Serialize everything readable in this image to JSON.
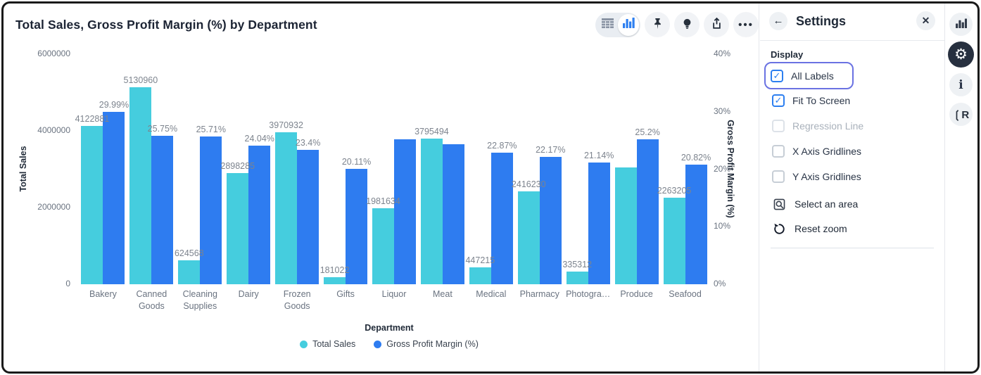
{
  "chart_header": {
    "title": "Total Sales, Gross Profit Margin (%) by Department"
  },
  "toolbar": {
    "icons": [
      "table-view-icon",
      "chart-view-icon",
      "pin-icon",
      "insights-bulb-icon",
      "export-icon",
      "more-options-icon"
    ],
    "active_view": "chart"
  },
  "chart_data": {
    "type": "bar",
    "title": "Total Sales, Gross Profit Margin (%) by Department",
    "categories": [
      "Bakery",
      "Canned Goods",
      "Cleaning Supplies",
      "Dairy",
      "Frozen Goods",
      "Gifts",
      "Liquor",
      "Meat",
      "Medical",
      "Pharmacy",
      "Photogra…",
      "Produce",
      "Seafood"
    ],
    "series": [
      {
        "name": "Total Sales",
        "axis": "left",
        "color": "#45cdde",
        "values": [
          4122881,
          5130960,
          624568,
          2898285,
          3970932,
          181022,
          1981634,
          3795494,
          447215,
          2416230,
          335312,
          3040000,
          2263205
        ],
        "labels": [
          "4122881",
          "5130960",
          "624568",
          "2898285",
          "3970932",
          "181022",
          "1981634",
          "3795494",
          "447215",
          "2416230",
          "335312",
          null,
          "2263205"
        ]
      },
      {
        "name": "Gross Profit Margin (%)",
        "axis": "right",
        "color": "#2e7cf0",
        "values": [
          29.99,
          25.75,
          25.71,
          24.04,
          23.4,
          20.11,
          25.2,
          24.4,
          22.87,
          22.17,
          21.14,
          25.2,
          20.82
        ],
        "labels": [
          "29.99%",
          "25.75%",
          "25.71%",
          "24.04%",
          "23.4%",
          "20.11%",
          null,
          null,
          "22.87%",
          "22.17%",
          "21.14%",
          "25.2%",
          "20.82%"
        ]
      }
    ],
    "left_axis": {
      "label": "Total Sales",
      "ticks": [
        "0",
        "2000000",
        "4000000",
        "6000000"
      ],
      "max": 6000000
    },
    "right_axis": {
      "label": "Gross Profit Margin (%)",
      "ticks": [
        "0%",
        "10%",
        "20%",
        "30%",
        "40%"
      ],
      "max": 40
    },
    "x_axis": {
      "label": "Department"
    },
    "legend": {
      "position": "bottom",
      "entries": [
        "Total Sales",
        "Gross Profit Margin (%)"
      ]
    },
    "gridlines": false
  },
  "settings": {
    "header": {
      "title": "Settings",
      "back_icon": "back-arrow-icon",
      "close_icon": "close-icon"
    },
    "display": {
      "heading": "Display",
      "items": [
        {
          "label": "All Labels",
          "checked": true,
          "disabled": false,
          "focused": true
        },
        {
          "label": "Fit To Screen",
          "checked": true,
          "disabled": false,
          "focused": false
        },
        {
          "label": "Regression Line",
          "checked": false,
          "disabled": true,
          "focused": false
        },
        {
          "label": "X Axis Gridlines",
          "checked": false,
          "disabled": false,
          "focused": false
        },
        {
          "label": "Y Axis Gridlines",
          "checked": false,
          "disabled": false,
          "focused": false
        }
      ]
    },
    "actions": [
      {
        "label": "Select an area",
        "icon": "select-area-icon"
      },
      {
        "label": "Reset zoom",
        "icon": "reset-zoom-icon"
      }
    ]
  },
  "sidebar": {
    "icons": [
      {
        "name": "chart-type-icon",
        "active": false
      },
      {
        "name": "settings-gear-icon",
        "active": true
      },
      {
        "name": "info-icon",
        "active": false
      },
      {
        "name": "r-script-icon",
        "active": false
      }
    ]
  },
  "colors": {
    "series_total_sales": "#45cdde",
    "series_gpm": "#2e7cf0",
    "accent_blue": "#2d7ff0",
    "focus_ring": "#6a72e2",
    "dark_navy": "#27303f"
  }
}
